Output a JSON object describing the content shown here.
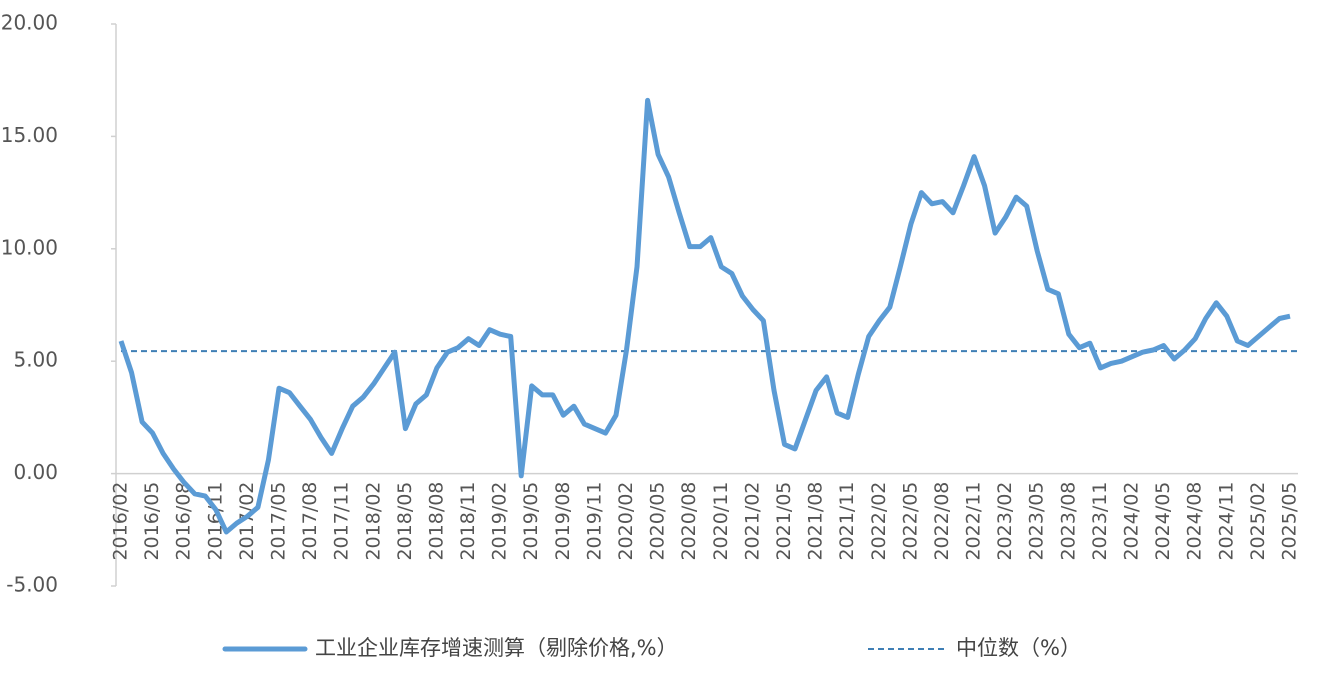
{
  "chart_data": {
    "type": "line",
    "categories": [
      "2016/02",
      null,
      null,
      "2016/05",
      null,
      null,
      "2016/08",
      null,
      null,
      "2016/11",
      null,
      null,
      "2017/02",
      null,
      null,
      "2017/05",
      null,
      null,
      "2017/08",
      null,
      null,
      "2017/11",
      null,
      null,
      "2018/02",
      null,
      null,
      "2018/05",
      null,
      null,
      "2018/08",
      null,
      null,
      "2018/11",
      null,
      null,
      "2019/02",
      null,
      null,
      "2019/05",
      null,
      null,
      "2019/08",
      null,
      null,
      "2019/11",
      null,
      null,
      "2020/02",
      null,
      null,
      "2020/05",
      null,
      null,
      "2020/08",
      null,
      null,
      "2020/11",
      null,
      null,
      "2021/02",
      null,
      null,
      "2021/05",
      null,
      null,
      "2021/08",
      null,
      null,
      "2021/11",
      null,
      null,
      "2022/02",
      null,
      null,
      "2022/05",
      null,
      null,
      "2022/08",
      null,
      null,
      "2022/11",
      null,
      null,
      "2023/02",
      null,
      null,
      "2023/05",
      null,
      null,
      "2023/08",
      null,
      null,
      "2023/11",
      null,
      null,
      "2024/02",
      null,
      null,
      "2024/05",
      null,
      null,
      "2024/08",
      null,
      null,
      "2024/11",
      null,
      null,
      "2025/02",
      null,
      null,
      "2025/05"
    ],
    "series": [
      {
        "name": "工业企业库存增速测算（剔除价格,%）",
        "color": "#5b9bd5",
        "values": [
          5.9,
          4.5,
          2.3,
          1.8,
          0.9,
          0.2,
          -0.4,
          -0.9,
          -1.0,
          -1.6,
          -2.6,
          -2.2,
          -1.9,
          -1.5,
          0.6,
          3.8,
          3.6,
          3.0,
          2.4,
          1.6,
          0.9,
          2.0,
          3.0,
          3.4,
          4.0,
          4.7,
          5.4,
          2.0,
          3.1,
          3.5,
          4.7,
          5.4,
          5.6,
          6.0,
          5.7,
          6.4,
          6.2,
          6.1,
          -0.1,
          3.9,
          3.5,
          3.5,
          2.6,
          3.0,
          2.2,
          2.0,
          1.8,
          2.6,
          5.5,
          9.2,
          16.6,
          14.2,
          13.2,
          11.6,
          10.1,
          10.1,
          10.5,
          9.2,
          8.9,
          7.9,
          7.3,
          6.8,
          3.7,
          1.3,
          1.1,
          2.4,
          3.7,
          4.3,
          2.7,
          2.5,
          4.4,
          6.1,
          6.8,
          7.4,
          9.2,
          11.1,
          12.5,
          12.0,
          12.1,
          11.6,
          12.8,
          14.1,
          12.8,
          10.7,
          11.4,
          12.3,
          11.9,
          9.9,
          8.2,
          8.0,
          6.2,
          5.6,
          5.8,
          4.7,
          4.9,
          5.0,
          5.2,
          5.4,
          5.5,
          5.7,
          5.1,
          5.5,
          6.0,
          6.9,
          7.6,
          7.0,
          5.9,
          5.7,
          6.1,
          6.5,
          6.9,
          7.0
        ]
      }
    ],
    "median": {
      "name": "中位数（%）",
      "value": 5.45,
      "color": "#3f7fb5"
    },
    "ylim": [
      -5,
      20
    ],
    "yticks": [
      {
        "value": -5,
        "label": "-5.00"
      },
      {
        "value": 0,
        "label": "0.00"
      },
      {
        "value": 5,
        "label": "5.00"
      },
      {
        "value": 10,
        "label": "10.00"
      },
      {
        "value": 15,
        "label": "15.00"
      },
      {
        "value": 20,
        "label": "20.00"
      }
    ]
  }
}
